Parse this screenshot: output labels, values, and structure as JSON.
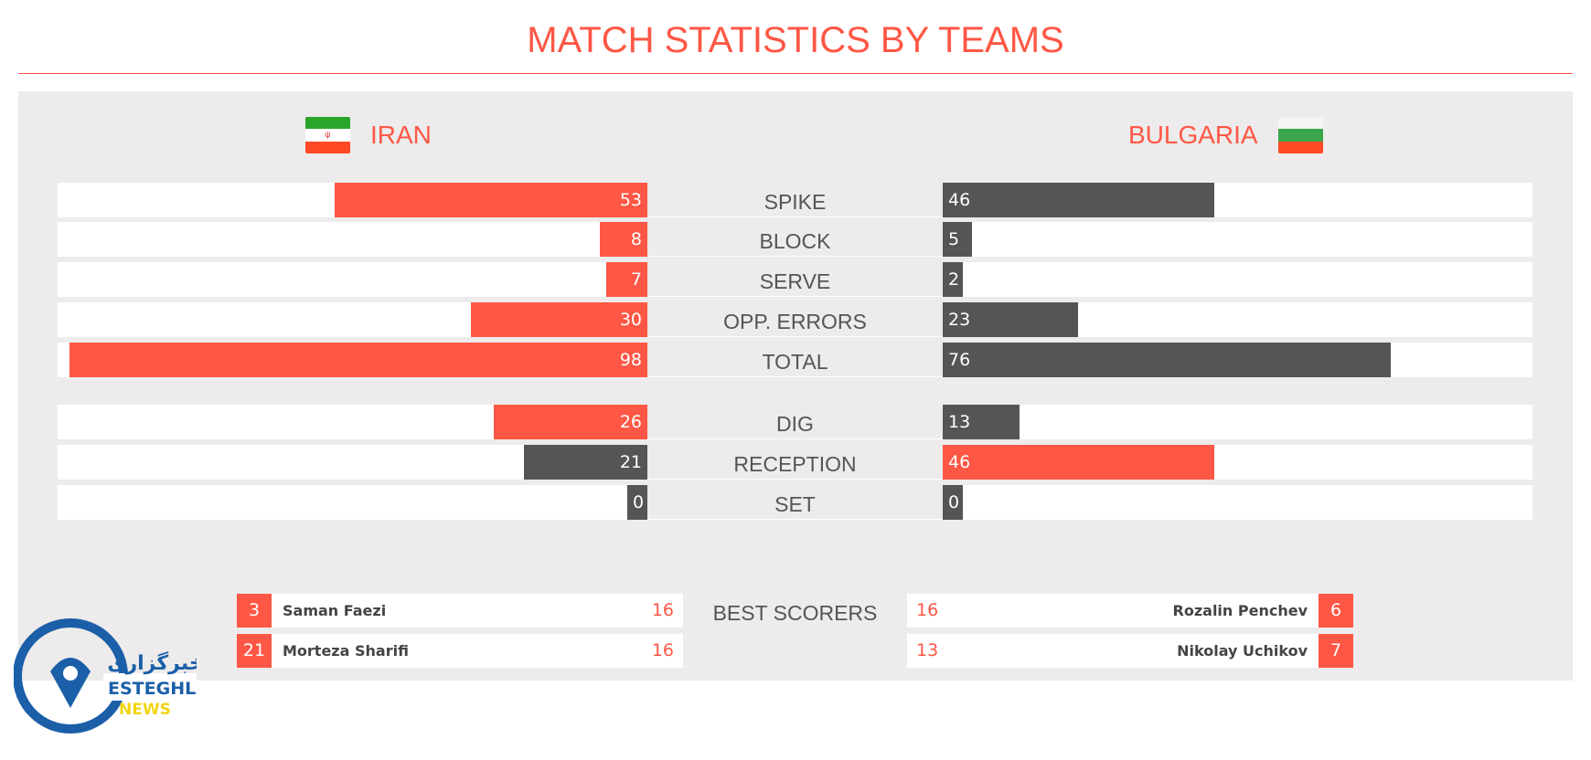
{
  "title": "MATCH STATISTICS BY TEAMS",
  "teams": {
    "home": "IRAN",
    "away": "BULGARIA"
  },
  "colors": {
    "accent": "#ff5745",
    "dark": "#555555",
    "panel": "#edebeb"
  },
  "max_value": 100,
  "stats": [
    {
      "label": "SPIKE",
      "home": 53,
      "away": 46
    },
    {
      "label": "BLOCK",
      "home": 8,
      "away": 5
    },
    {
      "label": "SERVE",
      "home": 7,
      "away": 2
    },
    {
      "label": "OPP. ERRORS",
      "home": 30,
      "away": 23
    },
    {
      "label": "TOTAL",
      "home": 98,
      "away": 76
    },
    {
      "label": "DIG",
      "home": 26,
      "away": 13
    },
    {
      "label": "RECEPTION",
      "home": 21,
      "away": 46
    },
    {
      "label": "SET",
      "home": 0,
      "away": 0
    }
  ],
  "best_scorers_label": "BEST SCORERS",
  "home_scorers": [
    {
      "number": "3",
      "name": "Saman Faezi",
      "points": "16"
    },
    {
      "number": "21",
      "name": "Morteza Sharifi",
      "points": "16"
    }
  ],
  "away_scorers": [
    {
      "number": "6",
      "name": "Rozalin Penchev",
      "points": "16"
    },
    {
      "number": "7",
      "name": "Nikolay Uchikov",
      "points": "13"
    }
  ],
  "logo": {
    "persian": "خبرگزاری",
    "line1": "ESTEGHLAL",
    "line2": "NEWS"
  }
}
